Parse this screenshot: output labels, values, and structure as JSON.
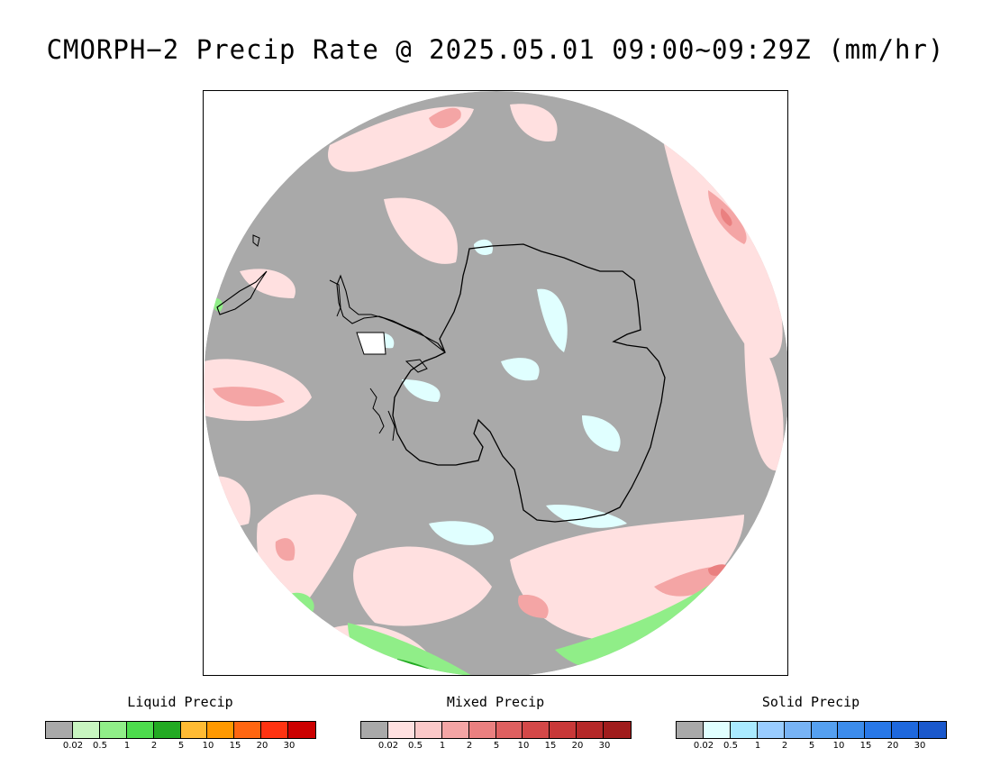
{
  "title": "CMORPH−2 Precip Rate @ 2025.05.01 09:00~09:29Z (mm/hr)",
  "legends": [
    {
      "title": "Liquid Precip",
      "colors": [
        "#a9a9a9",
        "#c8f5c0",
        "#90ee88",
        "#4ddc4d",
        "#22aa22",
        "#ffbb33",
        "#ff9900",
        "#ff6611",
        "#ff3311",
        "#cc0000"
      ],
      "ticks": [
        "0.02",
        "0.5",
        "1",
        "2",
        "5",
        "10",
        "15",
        "20",
        "30"
      ]
    },
    {
      "title": "Mixed Precip",
      "colors": [
        "#a9a9a9",
        "#ffe0e0",
        "#fbc8c8",
        "#f4a5a5",
        "#ea8080",
        "#de6060",
        "#d44848",
        "#c83838",
        "#b52828",
        "#a01c1c"
      ],
      "ticks": [
        "0.02",
        "0.5",
        "1",
        "2",
        "5",
        "10",
        "15",
        "20",
        "30"
      ]
    },
    {
      "title": "Solid Precip",
      "colors": [
        "#a9a9a9",
        "#e0ffff",
        "#aaeaff",
        "#99ccff",
        "#77b3f5",
        "#55a0f0",
        "#3c8cec",
        "#2878e8",
        "#1e68dd",
        "#1a58cc"
      ],
      "ticks": [
        "0.02",
        "0.5",
        "1",
        "2",
        "5",
        "10",
        "15",
        "20",
        "30"
      ]
    }
  ],
  "map": {
    "colors": {
      "no_precip": "#a9a9a9",
      "mixed_light": "#ffe0e0",
      "mixed_moderate": "#f4a5a5",
      "mixed_heavy": "#ea8080",
      "solid_light": "#e0ffff",
      "liquid_light": "#90ee88",
      "liquid_moderate": "#22aa22",
      "coastline": "#000000"
    },
    "projection": "polar-stereographic-south"
  }
}
